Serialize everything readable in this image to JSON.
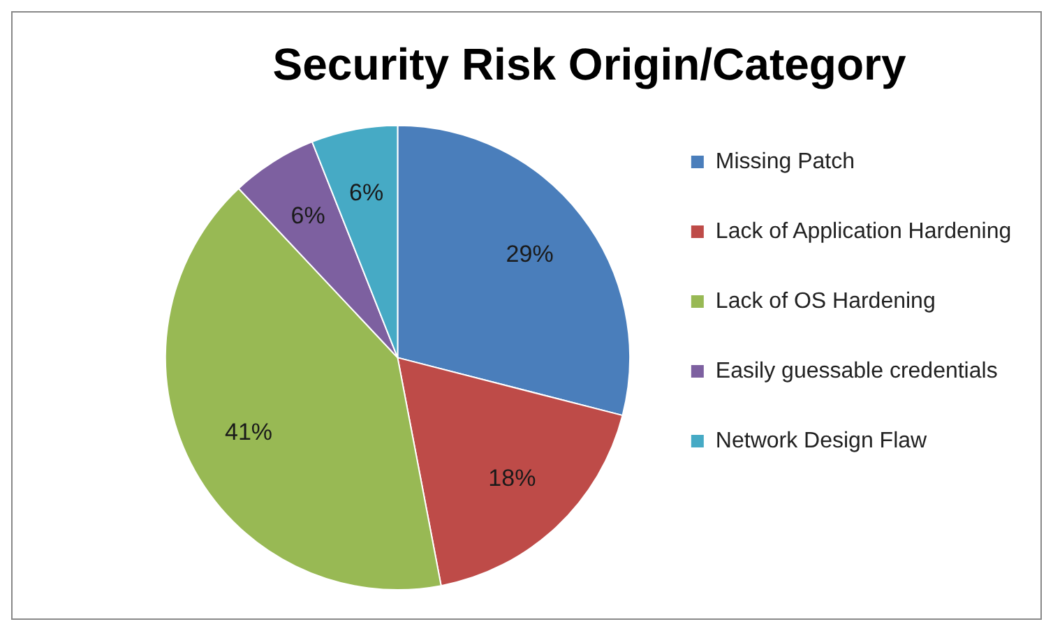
{
  "chart_data": {
    "type": "pie",
    "title": "Security Risk Origin/Category",
    "categories": [
      "Missing Patch",
      "Lack of Application Hardening",
      "Lack of OS Hardening",
      "Easily guessable credentials",
      "Network Design Flaw"
    ],
    "values": [
      29,
      18,
      41,
      6,
      6
    ],
    "colors": [
      "#4a7ebb",
      "#be4b48",
      "#98b954",
      "#7d60a0",
      "#46aac5"
    ],
    "value_labels": [
      "29%",
      "18%",
      "41%",
      "6%",
      "6%"
    ],
    "legend": "right"
  }
}
